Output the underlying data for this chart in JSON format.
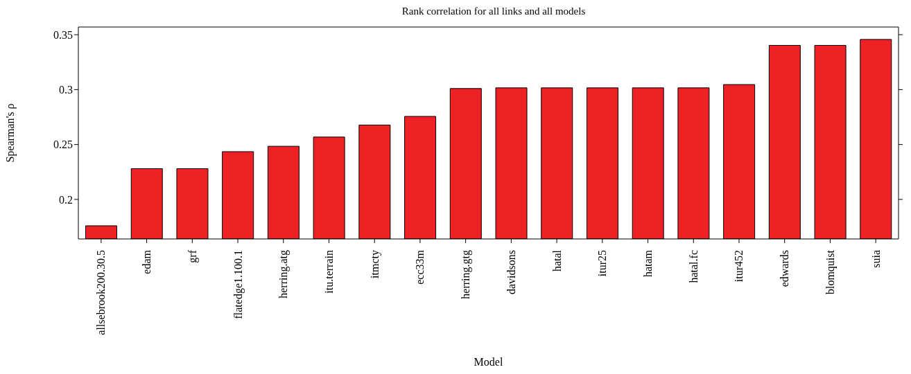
{
  "chart_data": {
    "type": "bar",
    "title": "Rank correlation for all links and all models",
    "xlabel": "Model",
    "ylabel": "Spearman's ρ",
    "categories": [
      "allsebrook200.30.5",
      "edam",
      "grf",
      "flatedge1.100.1",
      "herring.atg",
      "itu.terrain",
      "itmcty",
      "ecc33m",
      "herring.gtg",
      "davidsons",
      "hatal",
      "itur25",
      "hatam",
      "hatal.fc",
      "itur452",
      "edwards",
      "blomquist",
      "suia"
    ],
    "values": [
      0.176,
      0.228,
      0.228,
      0.2435,
      0.2484,
      0.2568,
      0.2677,
      0.2756,
      0.301,
      0.3016,
      0.3016,
      0.3016,
      0.3016,
      0.3016,
      0.3046,
      0.3403,
      0.3403,
      0.3457
    ],
    "color": "#ee2224",
    "ylim": [
      0.164,
      0.357
    ],
    "yticks": [
      0.2,
      {
        "value": 0.25,
        "label": "0.25"
      },
      {
        "value": 0.3,
        "label": "0.3"
      },
      0.35
    ],
    "grid": false
  }
}
